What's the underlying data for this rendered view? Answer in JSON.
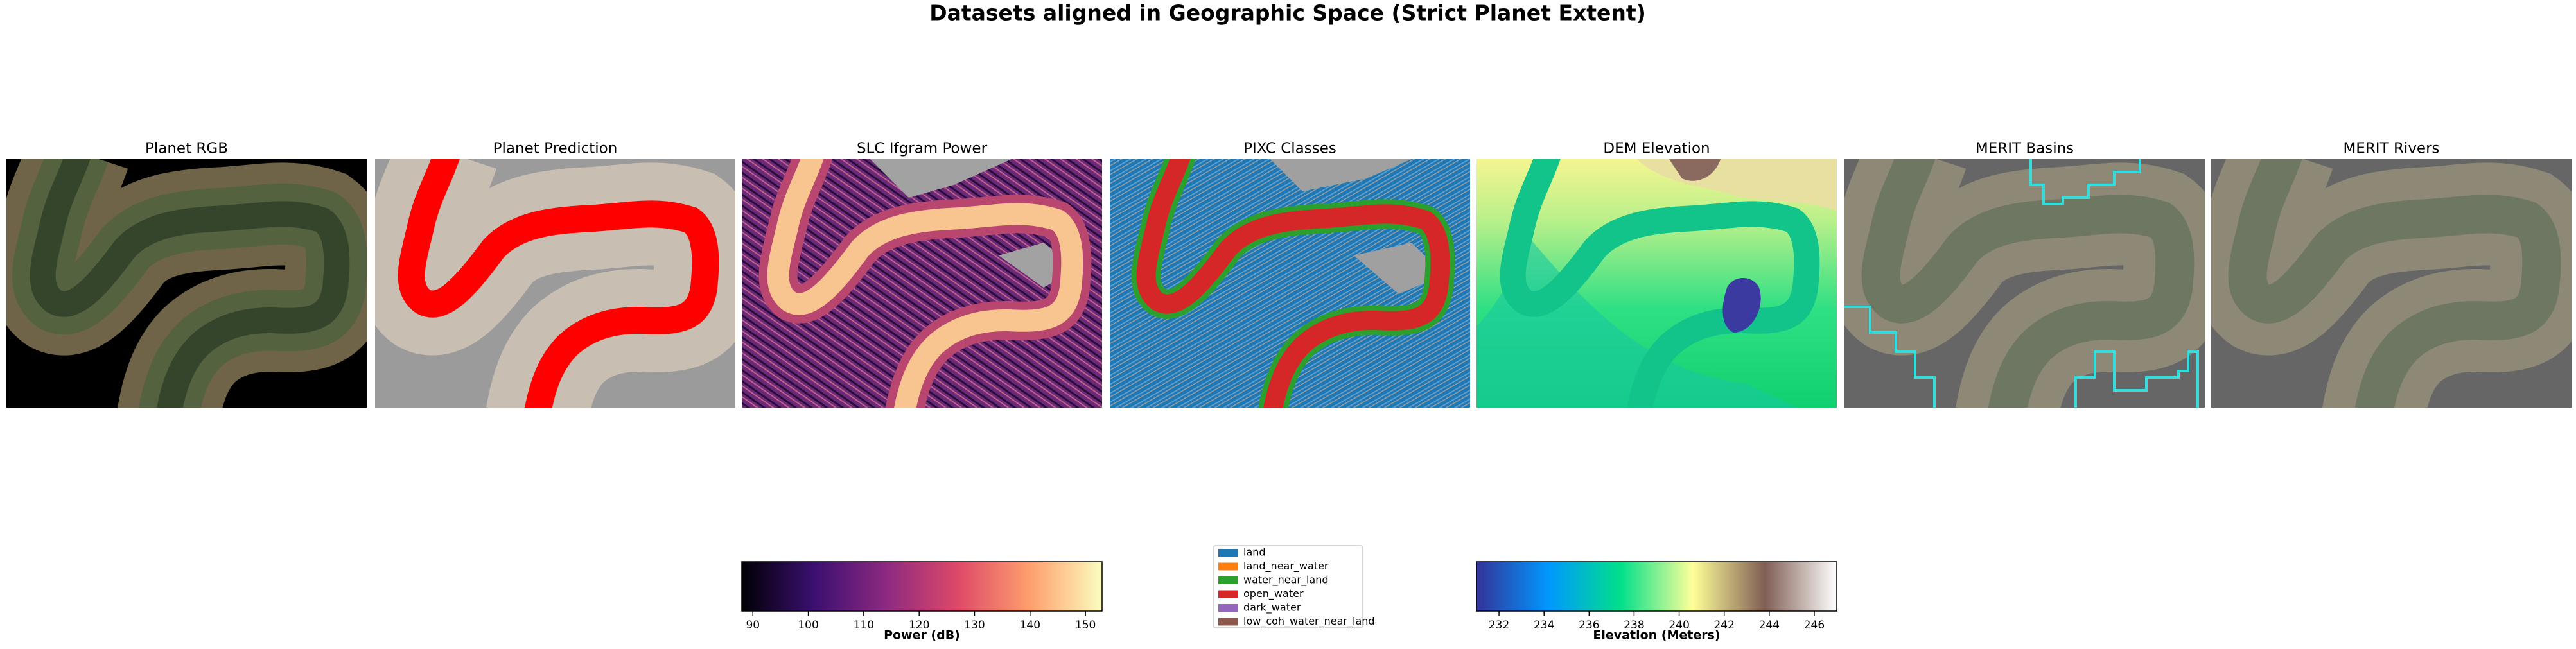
{
  "title": "Datasets aligned in Geographic Space (Strict Planet Extent)",
  "panels": [
    {
      "title": "Planet RGB"
    },
    {
      "title": "Planet Prediction"
    },
    {
      "title": "SLC Ifgram Power"
    },
    {
      "title": "PIXC Classes"
    },
    {
      "title": "DEM Elevation"
    },
    {
      "title": "MERIT Basins"
    },
    {
      "title": "MERIT Rivers"
    }
  ],
  "colorbars": [
    {
      "label": "Power (dB)",
      "xlim": [
        88,
        153
      ],
      "xticks": [
        90,
        100,
        110,
        120,
        130,
        140,
        150
      ],
      "colors": [
        "#000004",
        "#3b0f70",
        "#8c2981",
        "#de4968",
        "#fe9f6d",
        "#fcfdbf"
      ]
    },
    {
      "label": "Elevation (Meters)",
      "xlim": [
        231,
        247
      ],
      "xticks": [
        232,
        234,
        236,
        238,
        240,
        242,
        244,
        246
      ],
      "colors": [
        "#333399",
        "#0098fe",
        "#00e08a",
        "#ffff99",
        "#805e54",
        "#ffffff"
      ]
    }
  ],
  "legend": {
    "entries": [
      {
        "name": "land",
        "color": "#1f77b4"
      },
      {
        "name": "land_near_water",
        "color": "#ff7f0e"
      },
      {
        "name": "water_near_land",
        "color": "#2ca02c"
      },
      {
        "name": "open_water",
        "color": "#d62728"
      },
      {
        "name": "dark_water",
        "color": "#9467bd"
      },
      {
        "name": "low_coh_water_near_land",
        "color": "#8c564b"
      }
    ]
  }
}
